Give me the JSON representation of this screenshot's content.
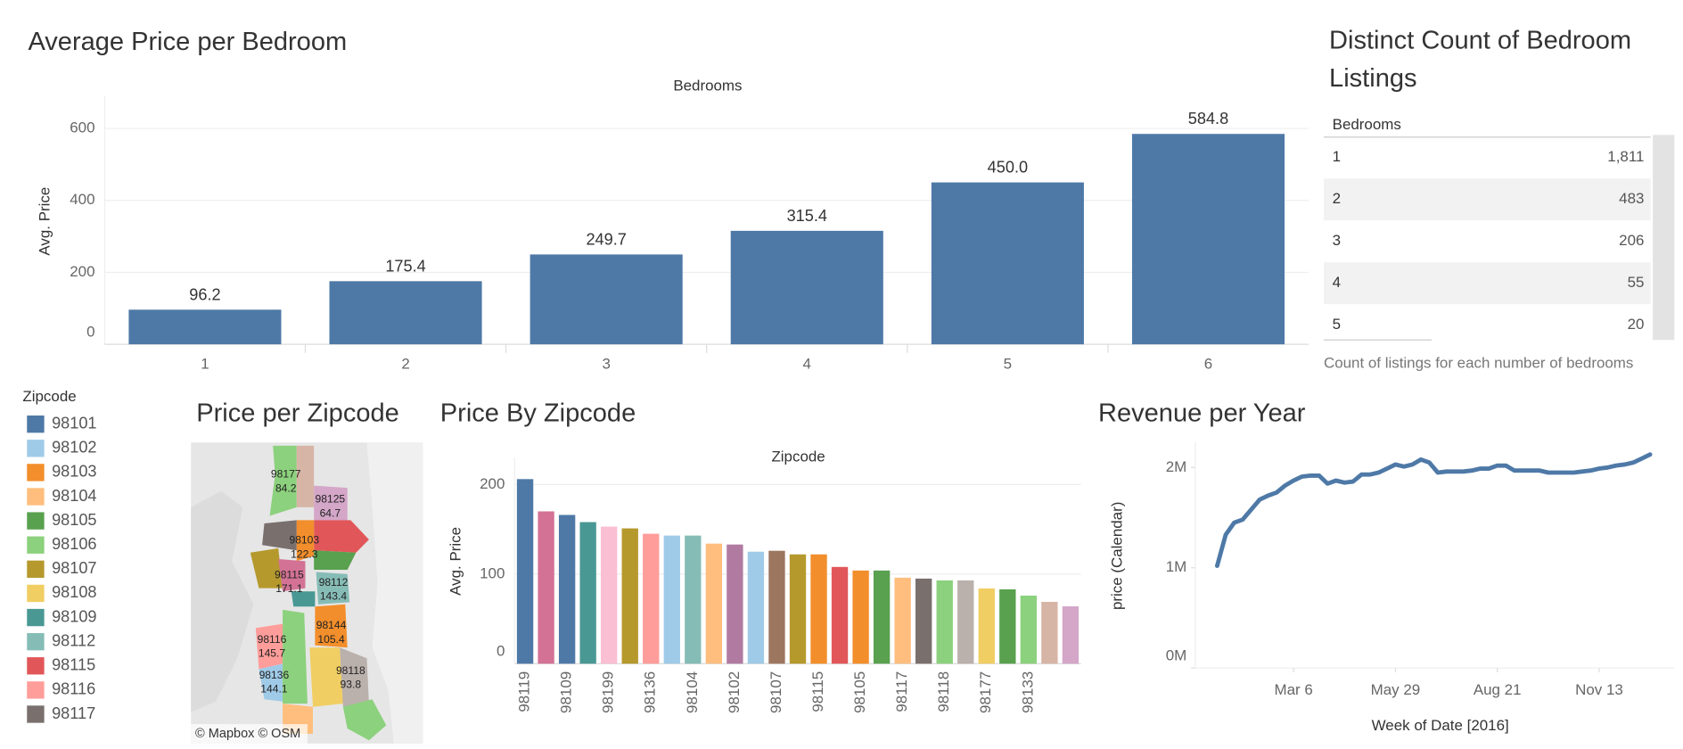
{
  "chart_data": [
    {
      "type": "bar",
      "title": "Average Price per Bedroom",
      "x_label": "Bedrooms",
      "y_label": "Avg. Price",
      "categories": [
        "1",
        "2",
        "3",
        "4",
        "5",
        "6"
      ],
      "values": [
        96.2,
        175.4,
        249.7,
        315.4,
        450.0,
        584.8
      ],
      "value_labels": [
        "96.2",
        "175.4",
        "249.7",
        "315.4",
        "450.0",
        "584.8"
      ],
      "color": "#4e79a7",
      "ylim": [
        0,
        690
      ],
      "yticks": [
        0,
        200,
        400,
        600
      ],
      "grid": true
    },
    {
      "type": "bar",
      "title": "Price By Zipcode",
      "x_label": "Zipcode",
      "y_label": "Avg. Price",
      "categories": [
        "98119",
        null,
        "98109",
        null,
        "98199",
        null,
        "98136",
        null,
        "98104",
        null,
        "98102",
        null,
        "98107",
        null,
        "98115",
        null,
        "98105",
        null,
        "98117",
        null,
        "98118",
        null,
        "98177",
        null,
        "98133",
        null,
        null
      ],
      "values": [
        206,
        170,
        166,
        158,
        153,
        151,
        145,
        143,
        143,
        134,
        133,
        125,
        126,
        122,
        122,
        108,
        104,
        104,
        96,
        95,
        93,
        93,
        84,
        83,
        76,
        69,
        64
      ],
      "colors": [
        "#4e79a7",
        "#d37295",
        "#4e79a7",
        "#499894",
        "#fabfd2",
        "#b6992d",
        "#ff9d9a",
        "#a0cbe8",
        "#86bcb6",
        "#ffbe7d",
        "#b07aa1",
        "#a0cbe8",
        "#9d7660",
        "#b6992d",
        "#f28e2b",
        "#e15759",
        "#f28e2b",
        "#59a14f",
        "#ffbe7d",
        "#79706e",
        "#8cd17d",
        "#bab0ac",
        "#f1ce63",
        "#59a14f",
        "#8cd17d",
        "#d7b5a6",
        "#d4a6c8"
      ],
      "ylim": [
        0,
        230
      ],
      "yticks": [
        0,
        100,
        200
      ],
      "grid": true
    },
    {
      "type": "line",
      "title": "Revenue per Year",
      "x_label": "Week of Date [2016]",
      "y_label": "price (Calendar)",
      "x": [
        "2016-01-03",
        "2016-01-10",
        "2016-01-17",
        "2016-01-24",
        "2016-01-31",
        "2016-02-07",
        "2016-02-14",
        "2016-02-21",
        "2016-02-28",
        "2016-03-06",
        "2016-03-13",
        "2016-03-20",
        "2016-03-27",
        "2016-04-03",
        "2016-04-10",
        "2016-04-17",
        "2016-04-24",
        "2016-05-01",
        "2016-05-08",
        "2016-05-15",
        "2016-05-22",
        "2016-05-29",
        "2016-06-05",
        "2016-06-12",
        "2016-06-19",
        "2016-06-26",
        "2016-07-03",
        "2016-07-10",
        "2016-07-17",
        "2016-07-24",
        "2016-07-31",
        "2016-08-07",
        "2016-08-14",
        "2016-08-21",
        "2016-08-28",
        "2016-09-04",
        "2016-09-11",
        "2016-09-18",
        "2016-09-25",
        "2016-10-02",
        "2016-10-09",
        "2016-10-16",
        "2016-10-23",
        "2016-10-30",
        "2016-11-06",
        "2016-11-13",
        "2016-11-20",
        "2016-11-27",
        "2016-12-04",
        "2016-12-11",
        "2016-12-18",
        "2016-12-25"
      ],
      "values": [
        1020000,
        1330000,
        1450000,
        1480000,
        1580000,
        1680000,
        1720000,
        1750000,
        1820000,
        1870000,
        1910000,
        1920000,
        1920000,
        1840000,
        1870000,
        1850000,
        1860000,
        1930000,
        1930000,
        1950000,
        1990000,
        2030000,
        2010000,
        2030000,
        2080000,
        2050000,
        1950000,
        1960000,
        1960000,
        1960000,
        1970000,
        1990000,
        1990000,
        2020000,
        2020000,
        1970000,
        1970000,
        1970000,
        1970000,
        1950000,
        1950000,
        1950000,
        1950000,
        1960000,
        1970000,
        1990000,
        2000000,
        2020000,
        2030000,
        2050000,
        2090000,
        2130000
      ],
      "color": "#4e79a7",
      "xlim": [
        "2015-12-16",
        "2017-01-14"
      ],
      "xticks": [
        {
          "value": "2016-03-06",
          "label": "Mar 6"
        },
        {
          "value": "2016-05-29",
          "label": "May 29"
        },
        {
          "value": "2016-08-21",
          "label": "Aug 21"
        },
        {
          "value": "2016-11-13",
          "label": "Nov 13"
        }
      ],
      "ylim": [
        0,
        2250000
      ],
      "yticks": [
        {
          "value": 0,
          "label": "0M"
        },
        {
          "value": 1000000,
          "label": "1M"
        },
        {
          "value": 2000000,
          "label": "2M"
        }
      ]
    }
  ],
  "table": {
    "title": "Distinct Count of Bedroom Listings",
    "header": "Bedrooms",
    "rows": [
      [
        "1",
        "1,811"
      ],
      [
        "2",
        "483"
      ],
      [
        "3",
        "206"
      ],
      [
        "4",
        "55"
      ],
      [
        "5",
        "20"
      ]
    ],
    "caption": "Count of listings for each number of bedrooms"
  },
  "map": {
    "title": "Price per Zipcode",
    "attribution": "© Mapbox  © OSM",
    "regions": [
      {
        "zipcode": "98177",
        "price": 84.2
      },
      {
        "zipcode": "98125",
        "price": 64.7
      },
      {
        "zipcode": "98103",
        "price": 122.3
      },
      {
        "zipcode": "98115",
        "price": 171.1
      },
      {
        "zipcode": "98112",
        "price": 143.4
      },
      {
        "zipcode": "98144",
        "price": 105.4
      },
      {
        "zipcode": "98116",
        "price": 145.7
      },
      {
        "zipcode": "98136",
        "price": 144.1
      },
      {
        "zipcode": "98118",
        "price": 93.8
      }
    ]
  },
  "legend": {
    "title": "Zipcode",
    "items": [
      {
        "name": "98101",
        "color": "#4e79a7"
      },
      {
        "name": "98102",
        "color": "#a0cbe8"
      },
      {
        "name": "98103",
        "color": "#f28e2b"
      },
      {
        "name": "98104",
        "color": "#ffbe7d"
      },
      {
        "name": "98105",
        "color": "#59a14f"
      },
      {
        "name": "98106",
        "color": "#8cd17d"
      },
      {
        "name": "98107",
        "color": "#b6992d"
      },
      {
        "name": "98108",
        "color": "#f1ce63"
      },
      {
        "name": "98109",
        "color": "#499894"
      },
      {
        "name": "98112",
        "color": "#86bcb6"
      },
      {
        "name": "98115",
        "color": "#e15759"
      },
      {
        "name": "98116",
        "color": "#ff9d9a"
      },
      {
        "name": "98117",
        "color": "#79706e"
      }
    ]
  }
}
